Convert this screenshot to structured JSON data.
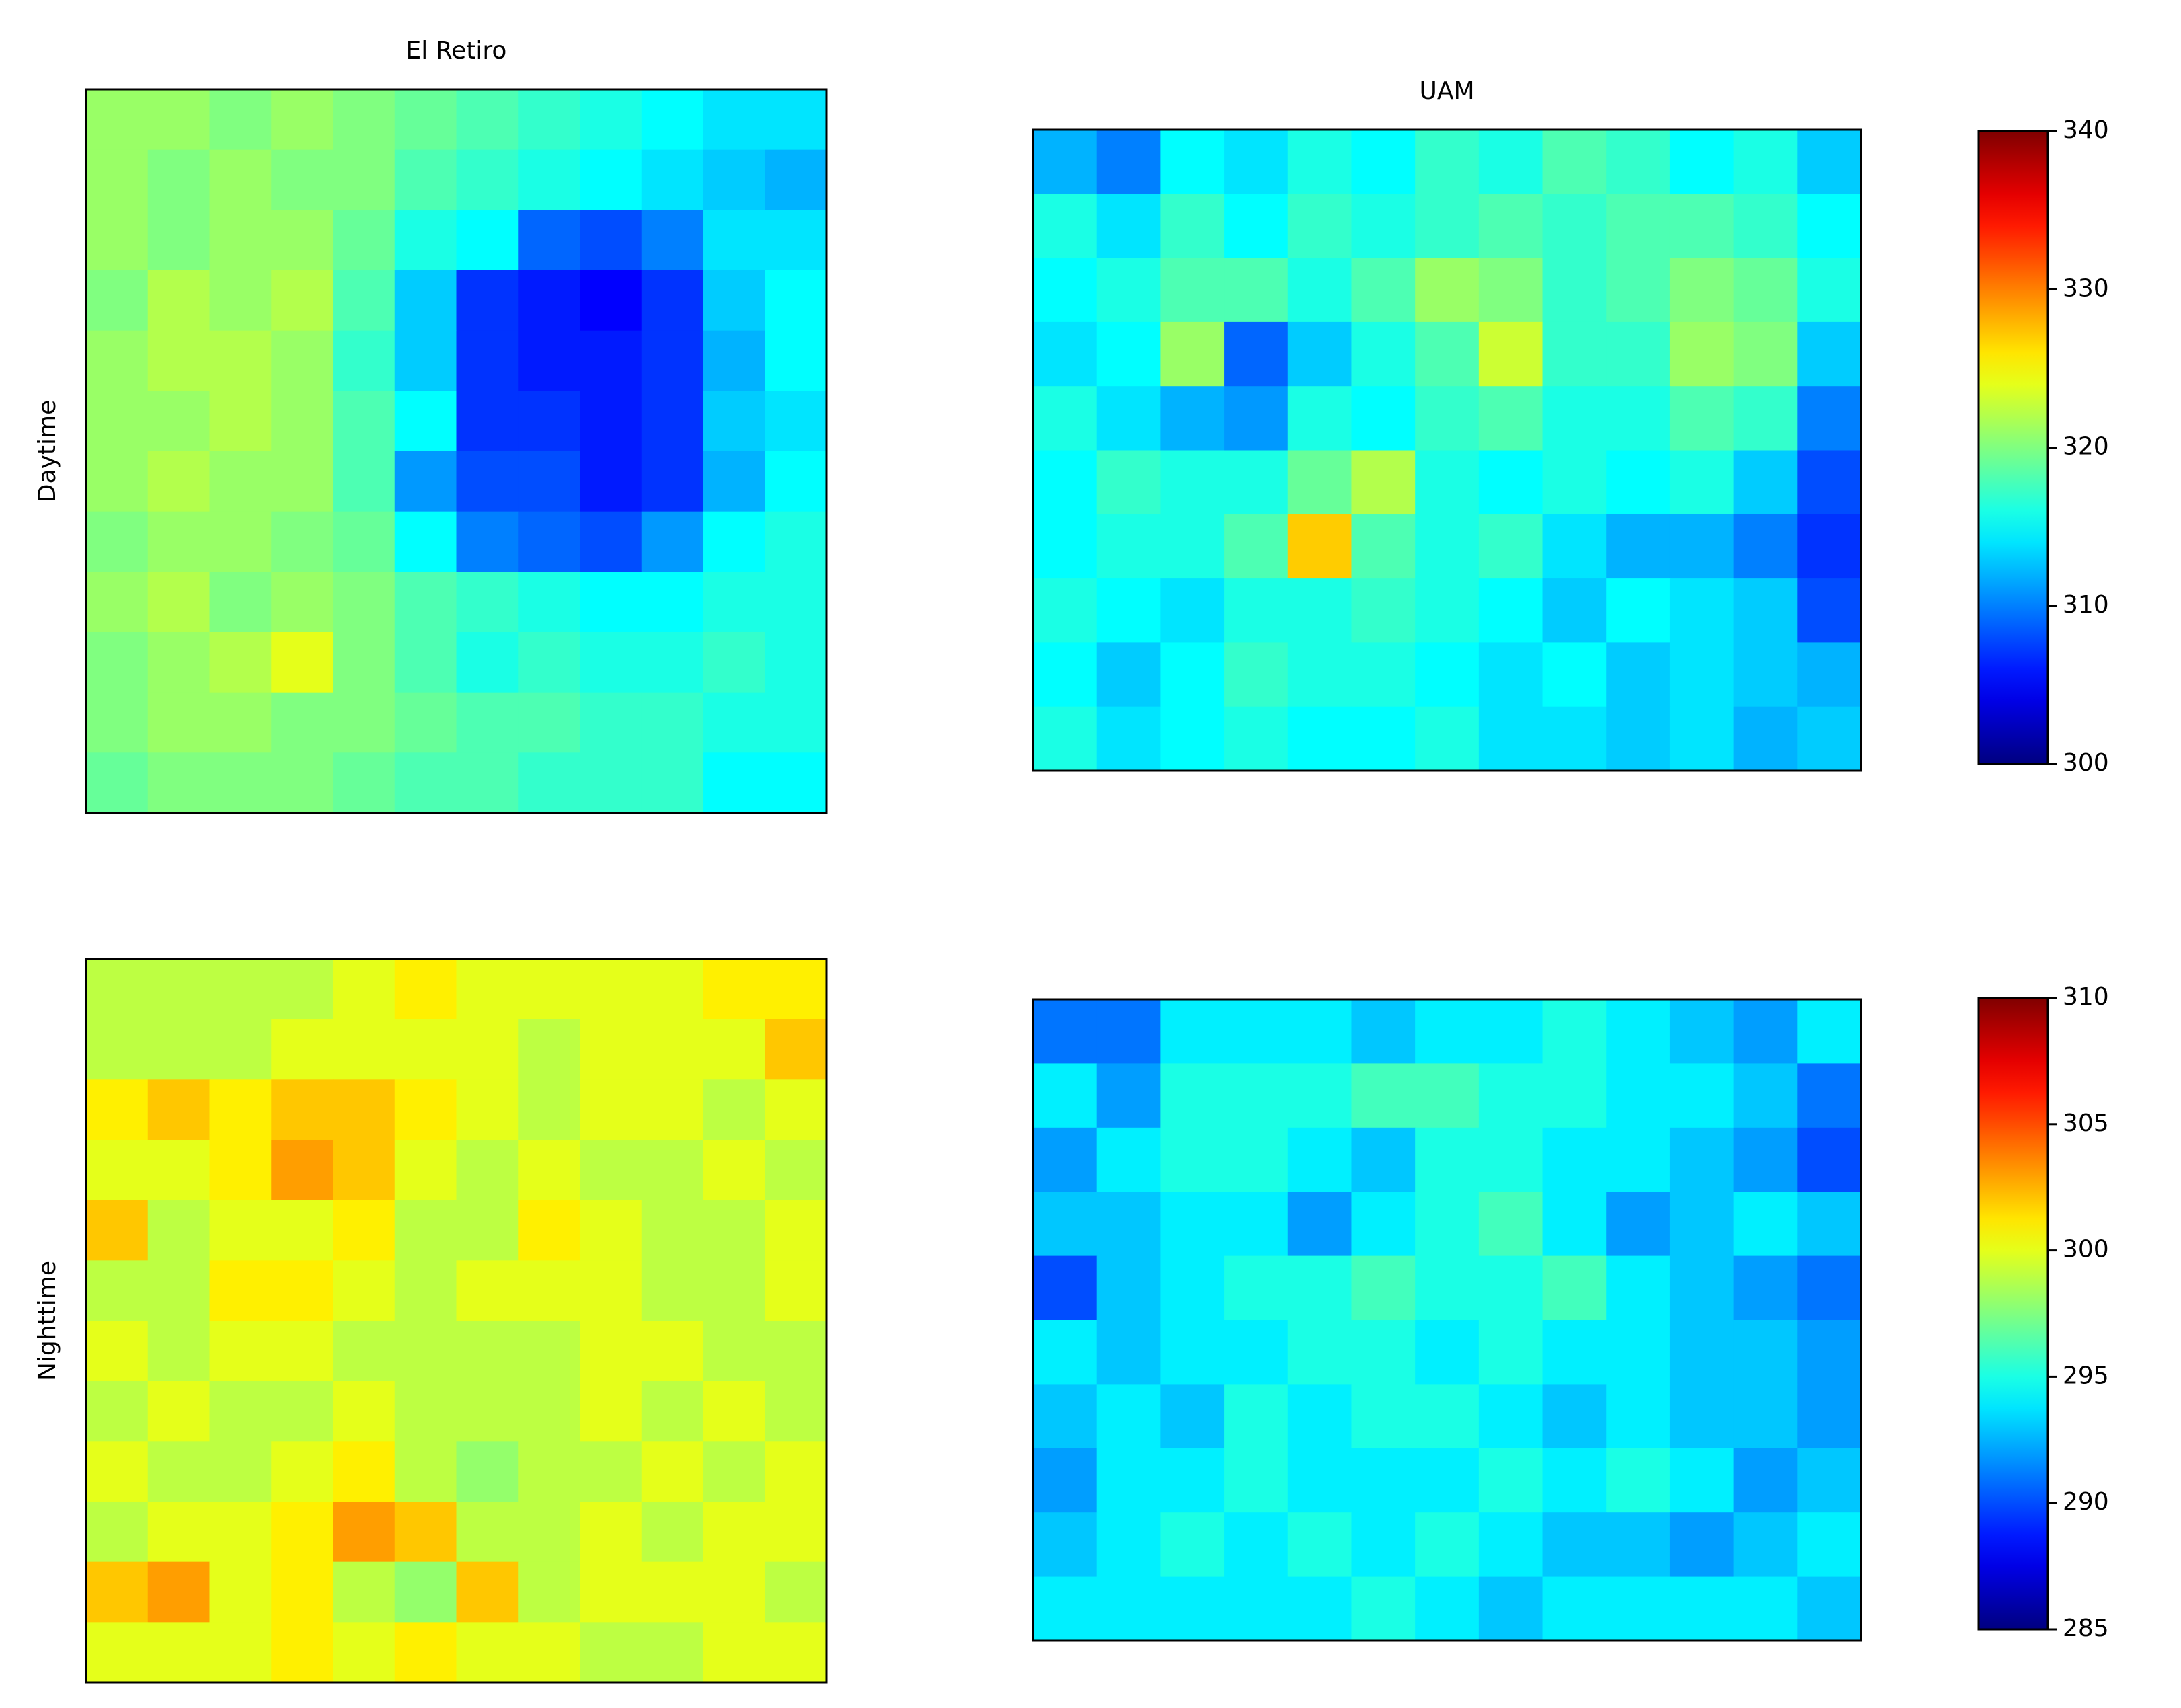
{
  "chart_data": [
    {
      "type": "heatmap",
      "title": "El Retiro",
      "ylabel": "Daytime",
      "clim": [
        300,
        340
      ],
      "values": [
        [
          321,
          321,
          320,
          321,
          320,
          319,
          318,
          317,
          316,
          315,
          314,
          314
        ],
        [
          321,
          320,
          321,
          320,
          320,
          318,
          317,
          316,
          315,
          314,
          313,
          312
        ],
        [
          321,
          320,
          321,
          321,
          319,
          316,
          315,
          309,
          308,
          310,
          314,
          314
        ],
        [
          320,
          322,
          321,
          322,
          318,
          313,
          307,
          306,
          305,
          307,
          313,
          315
        ],
        [
          321,
          322,
          322,
          321,
          317,
          313,
          307,
          306,
          306,
          307,
          312,
          315
        ],
        [
          321,
          321,
          322,
          321,
          318,
          315,
          307,
          307,
          306,
          307,
          313,
          314
        ],
        [
          321,
          322,
          321,
          321,
          318,
          311,
          308,
          308,
          306,
          307,
          312,
          315
        ],
        [
          320,
          321,
          321,
          320,
          319,
          315,
          310,
          309,
          308,
          311,
          315,
          316
        ],
        [
          321,
          322,
          320,
          321,
          320,
          318,
          317,
          316,
          315,
          315,
          316,
          316
        ],
        [
          320,
          321,
          322,
          324,
          320,
          318,
          316,
          317,
          316,
          316,
          317,
          316
        ],
        [
          320,
          321,
          321,
          320,
          320,
          319,
          318,
          318,
          317,
          317,
          316,
          316
        ],
        [
          319,
          320,
          320,
          320,
          319,
          318,
          318,
          317,
          317,
          317,
          315,
          315
        ]
      ]
    },
    {
      "type": "heatmap",
      "title": "UAM",
      "clim": [
        300,
        340
      ],
      "colorbar": {
        "ticks": [
          300,
          310,
          320,
          330,
          340
        ]
      },
      "values": [
        [
          312,
          310,
          315,
          314,
          316,
          315,
          317,
          316,
          318,
          317,
          315,
          316,
          313
        ],
        [
          316,
          314,
          317,
          315,
          317,
          316,
          317,
          318,
          317,
          318,
          318,
          317,
          315
        ],
        [
          315,
          316,
          318,
          318,
          316,
          318,
          321,
          320,
          317,
          318,
          320,
          319,
          316
        ],
        [
          314,
          315,
          321,
          309,
          313,
          316,
          318,
          323,
          317,
          317,
          321,
          320,
          313
        ],
        [
          316,
          314,
          312,
          311,
          316,
          315,
          317,
          318,
          316,
          316,
          318,
          317,
          310
        ],
        [
          315,
          317,
          316,
          316,
          319,
          322,
          316,
          315,
          316,
          315,
          316,
          313,
          308
        ],
        [
          315,
          316,
          316,
          318,
          327,
          318,
          316,
          317,
          314,
          312,
          312,
          310,
          307
        ],
        [
          316,
          315,
          314,
          316,
          316,
          317,
          316,
          315,
          313,
          315,
          314,
          313,
          308
        ],
        [
          315,
          313,
          315,
          317,
          316,
          316,
          315,
          314,
          315,
          313,
          314,
          313,
          312
        ],
        [
          316,
          314,
          315,
          316,
          315,
          315,
          316,
          314,
          314,
          313,
          314,
          312,
          313
        ]
      ]
    },
    {
      "type": "heatmap",
      "ylabel": "Nighttime",
      "clim": [
        285,
        310
      ],
      "values": [
        [
          299,
          299,
          299,
          299,
          300,
          301,
          300,
          300,
          300,
          300,
          301,
          301
        ],
        [
          299,
          299,
          299,
          300,
          300,
          300,
          300,
          299,
          300,
          300,
          300,
          302
        ],
        [
          301,
          302,
          301,
          302,
          302,
          301,
          300,
          299,
          300,
          300,
          299,
          300
        ],
        [
          300,
          300,
          301,
          303,
          302,
          300,
          299,
          300,
          299,
          299,
          300,
          299
        ],
        [
          302,
          299,
          300,
          300,
          301,
          299,
          299,
          301,
          300,
          299,
          299,
          300
        ],
        [
          299,
          299,
          301,
          301,
          300,
          299,
          300,
          300,
          300,
          299,
          299,
          300
        ],
        [
          300,
          299,
          300,
          300,
          299,
          299,
          299,
          299,
          300,
          300,
          299,
          299
        ],
        [
          299,
          300,
          299,
          299,
          300,
          299,
          299,
          299,
          300,
          299,
          300,
          299
        ],
        [
          300,
          299,
          299,
          300,
          301,
          299,
          298,
          299,
          299,
          300,
          299,
          300
        ],
        [
          299,
          300,
          300,
          301,
          303,
          302,
          299,
          299,
          300,
          299,
          300,
          300
        ],
        [
          302,
          303,
          300,
          301,
          299,
          298,
          302,
          299,
          300,
          300,
          300,
          299
        ],
        [
          300,
          300,
          300,
          301,
          300,
          301,
          300,
          300,
          299,
          299,
          300,
          300
        ]
      ]
    },
    {
      "type": "heatmap",
      "clim": [
        285,
        310
      ],
      "colorbar": {
        "ticks": [
          285,
          290,
          295,
          300,
          305,
          310
        ]
      },
      "values": [
        [
          291,
          291,
          294,
          294,
          294,
          293,
          294,
          294,
          295,
          294,
          293,
          292,
          294
        ],
        [
          294,
          292,
          295,
          295,
          295,
          296,
          296,
          295,
          295,
          294,
          294,
          293,
          291
        ],
        [
          292,
          294,
          295,
          295,
          294,
          293,
          295,
          295,
          294,
          294,
          293,
          292,
          290
        ],
        [
          293,
          293,
          294,
          294,
          292,
          294,
          295,
          296,
          294,
          292,
          293,
          294,
          293
        ],
        [
          290,
          293,
          294,
          295,
          295,
          296,
          295,
          295,
          296,
          294,
          293,
          292,
          291
        ],
        [
          294,
          293,
          294,
          294,
          295,
          295,
          294,
          295,
          294,
          294,
          293,
          293,
          292
        ],
        [
          293,
          294,
          293,
          295,
          294,
          295,
          295,
          294,
          293,
          294,
          293,
          293,
          292
        ],
        [
          292,
          294,
          294,
          295,
          294,
          294,
          294,
          295,
          294,
          295,
          294,
          292,
          293
        ],
        [
          293,
          294,
          295,
          294,
          295,
          294,
          295,
          294,
          293,
          293,
          292,
          293,
          294
        ],
        [
          294,
          294,
          294,
          294,
          294,
          295,
          294,
          293,
          294,
          294,
          294,
          294,
          293
        ]
      ]
    }
  ]
}
